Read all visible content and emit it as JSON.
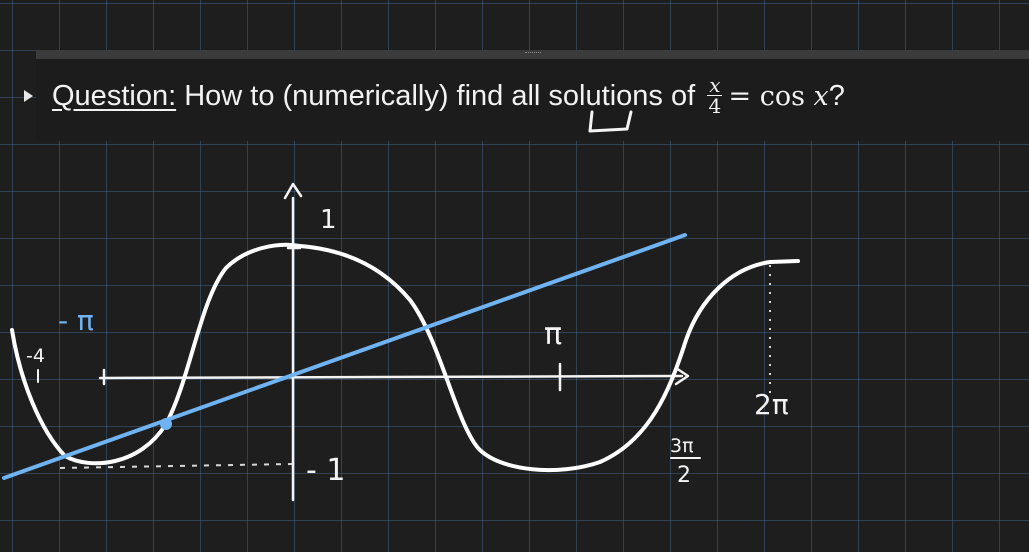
{
  "question": {
    "label": "Question:",
    "text_before": " How to (numerically) find ",
    "emphasis": "all",
    "text_after": " solutions of",
    "frac_num": "x",
    "frac_den": "4",
    "eq_sign": "=",
    "fn": "cos",
    "var": "x",
    "qmark": "?"
  },
  "annotations": {
    "y_top": "1",
    "y_bottom": "- 1",
    "neg_pi": "- π",
    "neg_four": "-4",
    "pi": "π",
    "three_pi_over_two_num": "3π",
    "three_pi_over_two_den": "2",
    "two_pi": "2π"
  },
  "colors": {
    "line": "#6fb3f2",
    "curve": "#ffffff",
    "background": "#1e1e1e"
  }
}
